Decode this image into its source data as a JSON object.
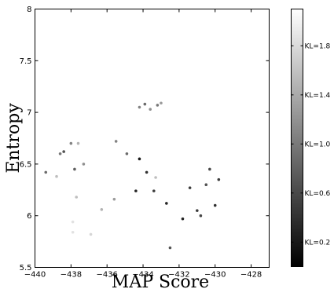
{
  "chart_data": {
    "type": "scatter",
    "title": "",
    "xlabel": "MAP Score",
    "ylabel": "Entropy",
    "xlim": [
      -440,
      -427
    ],
    "ylim": [
      5.5,
      8
    ],
    "xticks": [
      -440,
      -438,
      -436,
      -434,
      -432,
      -430,
      -428
    ],
    "yticks": [
      5.5,
      6,
      6.5,
      7,
      7.5,
      8
    ],
    "grid": false,
    "colorbar": {
      "label_prefix": "KL",
      "range": [
        0,
        2.1
      ],
      "colormap": "gray",
      "ticks": [
        "KL=0.2",
        "KL=0.6",
        "KL=1.0",
        "KL=1.4",
        "KL=1.8"
      ],
      "tick_values": [
        0.2,
        0.6,
        1.0,
        1.4,
        1.8
      ]
    },
    "points": [
      {
        "x": -439.4,
        "y": 6.42,
        "kl": 0.9
      },
      {
        "x": -438.8,
        "y": 6.38,
        "kl": 1.6
      },
      {
        "x": -438.6,
        "y": 6.6,
        "kl": 1.0
      },
      {
        "x": -438.4,
        "y": 6.62,
        "kl": 0.7
      },
      {
        "x": -438.0,
        "y": 6.7,
        "kl": 1.1
      },
      {
        "x": -437.6,
        "y": 6.7,
        "kl": 1.5
      },
      {
        "x": -437.3,
        "y": 6.5,
        "kl": 1.2
      },
      {
        "x": -437.8,
        "y": 6.45,
        "kl": 0.8
      },
      {
        "x": -437.7,
        "y": 6.18,
        "kl": 1.6
      },
      {
        "x": -437.9,
        "y": 5.94,
        "kl": 1.9
      },
      {
        "x": -437.9,
        "y": 5.84,
        "kl": 1.9
      },
      {
        "x": -436.9,
        "y": 5.82,
        "kl": 1.8
      },
      {
        "x": -436.3,
        "y": 6.06,
        "kl": 1.5
      },
      {
        "x": -435.6,
        "y": 6.16,
        "kl": 1.3
      },
      {
        "x": -435.5,
        "y": 6.72,
        "kl": 1.1
      },
      {
        "x": -434.9,
        "y": 6.6,
        "kl": 0.9
      },
      {
        "x": -434.4,
        "y": 6.24,
        "kl": 0.3
      },
      {
        "x": -434.2,
        "y": 6.55,
        "kl": 0.2
      },
      {
        "x": -433.8,
        "y": 6.42,
        "kl": 0.4
      },
      {
        "x": -433.3,
        "y": 6.37,
        "kl": 1.6
      },
      {
        "x": -433.4,
        "y": 6.24,
        "kl": 0.5
      },
      {
        "x": -432.7,
        "y": 6.12,
        "kl": 0.3
      },
      {
        "x": -432.5,
        "y": 5.69,
        "kl": 0.7
      },
      {
        "x": -431.8,
        "y": 5.97,
        "kl": 0.3
      },
      {
        "x": -431.4,
        "y": 6.27,
        "kl": 0.5
      },
      {
        "x": -430.3,
        "y": 6.45,
        "kl": 0.6
      },
      {
        "x": -431.0,
        "y": 6.05,
        "kl": 0.5
      },
      {
        "x": -430.5,
        "y": 6.3,
        "kl": 0.7
      },
      {
        "x": -430.0,
        "y": 6.1,
        "kl": 0.4
      },
      {
        "x": -429.8,
        "y": 6.35,
        "kl": 0.5
      },
      {
        "x": -430.8,
        "y": 6.0,
        "kl": 0.6
      },
      {
        "x": -434.2,
        "y": 7.05,
        "kl": 1.1
      },
      {
        "x": -433.9,
        "y": 7.08,
        "kl": 0.9
      },
      {
        "x": -433.6,
        "y": 7.03,
        "kl": 1.2
      },
      {
        "x": -433.2,
        "y": 7.07,
        "kl": 1.0
      },
      {
        "x": -433.0,
        "y": 7.09,
        "kl": 1.3
      }
    ]
  }
}
